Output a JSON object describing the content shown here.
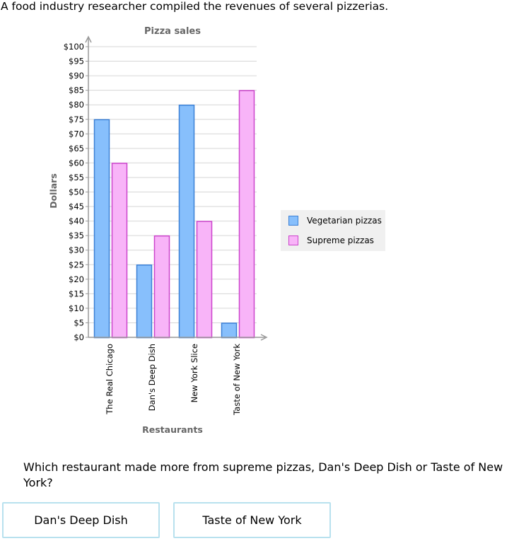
{
  "intro_text": "A food industry researcher compiled the revenues of several pizzerias.",
  "question_text": "Which restaurant made more from supreme pizzas, Dan's Deep Dish or Taste of New York?",
  "answers": [
    {
      "label": "Dan's Deep Dish"
    },
    {
      "label": "Taste of New York"
    }
  ],
  "colors": {
    "vegetarian_fill": "#87bffc",
    "vegetarian_stroke": "#3b80d6",
    "supreme_fill": "#f8b4f8",
    "supreme_stroke": "#cc44cc",
    "axis": "#999999",
    "grid": "#d6d6d6",
    "legend_bg": "#f0f0f0",
    "button_border": "#b8e1ee"
  },
  "chart_data": {
    "type": "bar",
    "title": "Pizza sales",
    "xlabel": "Restaurants",
    "ylabel": "Dollars",
    "categories": [
      "The Real Chicago",
      "Dan's Deep Dish",
      "New York Slice",
      "Taste of New York"
    ],
    "series": [
      {
        "name": "Vegetarian pizzas",
        "values": [
          75,
          25,
          80,
          5
        ]
      },
      {
        "name": "Supreme pizzas",
        "values": [
          60,
          35,
          40,
          85
        ]
      }
    ],
    "ylim": [
      0,
      100
    ],
    "ytick_step": 5,
    "ytick_prefix": "$",
    "grid": true,
    "legend_position": "right"
  }
}
